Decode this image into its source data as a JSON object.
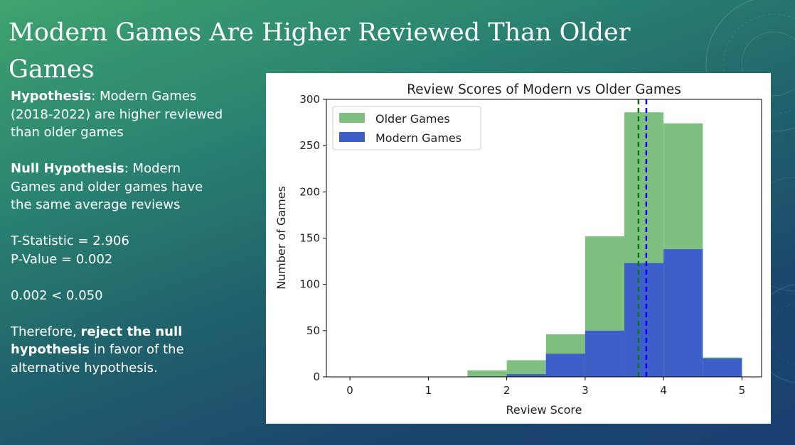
{
  "slide": {
    "title": "Modern Games Are Higher Reviewed Than Older Games",
    "hypothesis_label": "Hypothesis",
    "hypothesis_text": ": Modern Games (2018-2022) are higher reviewed than older games",
    "null_label": "Null Hypothesis",
    "null_text": ": Modern Games and older games have the same average reviews",
    "t_stat": "T-Statistic = 2.906",
    "p_value": "P-Value = 0.002",
    "comparison": "0.002 < 0.050",
    "conclusion_pre": "Therefore, ",
    "conclusion_bold": "reject the null hypothesis",
    "conclusion_post": " in favor of the alternative hypothesis."
  },
  "chart_data": {
    "type": "bar",
    "title": "Review Scores of Modern vs Older Games",
    "xlabel": "Review Score",
    "ylabel": "Number of Games",
    "xlim": [
      -0.3,
      5.25
    ],
    "ylim": [
      0,
      300
    ],
    "xticks": [
      0,
      1,
      2,
      3,
      4,
      5
    ],
    "yticks": [
      0,
      50,
      100,
      150,
      200,
      250,
      300
    ],
    "bin_edges": [
      1.5,
      2.0,
      2.5,
      3.0,
      3.5,
      4.0,
      4.5,
      5.0
    ],
    "series": [
      {
        "name": "Older Games",
        "color": "#7fbf7f",
        "values": [
          7,
          18,
          46,
          152,
          286,
          274,
          21
        ]
      },
      {
        "name": "Modern Games",
        "color": "#3c5fc8",
        "values": [
          0,
          3,
          25,
          50,
          123,
          138,
          20
        ]
      }
    ],
    "mean_lines": [
      {
        "name": "Older Games mean",
        "x": 3.68,
        "color": "#008000"
      },
      {
        "name": "Modern Games mean",
        "x": 3.78,
        "color": "#0000ff"
      }
    ],
    "legend_position": "top-left",
    "grid": false
  }
}
